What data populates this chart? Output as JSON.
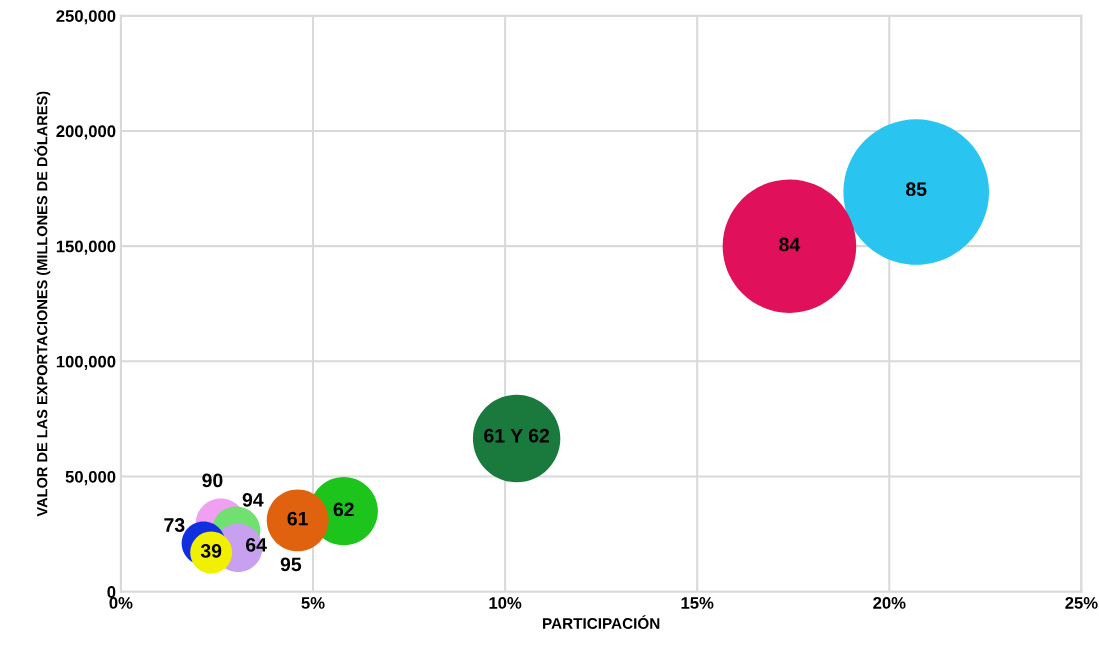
{
  "chart_data": {
    "type": "bubble",
    "xlabel": "PARTICIPACIÓN",
    "ylabel": "VALOR DE LAS EXPORTACIONES (MILLONES DE DÓLARES)",
    "x": [
      20.7,
      17.4,
      10.3,
      5.8,
      4.6,
      2.6,
      3.0,
      3.05,
      2.15,
      2.35
    ],
    "values": [
      173500,
      150000,
      66500,
      35000,
      31000,
      29500,
      26500,
      19000,
      21000,
      17000
    ],
    "sizes": [
      1,
      0.84,
      0.36,
      0.22,
      0.18,
      0.12,
      0.11,
      0.11,
      0.09,
      0.083
    ],
    "colors": [
      "#29c5f0",
      "#e0105a",
      "#1a7a3e",
      "#1cc41c",
      "#e0620e",
      "#f0a0f0",
      "#70e070",
      "#c8a0f0",
      "#1030e0",
      "#f0f000"
    ],
    "xlim": [
      0,
      25
    ],
    "xticks": [
      {
        "value": 0,
        "label": "0%"
      },
      {
        "value": 5,
        "label": "5%"
      },
      {
        "value": 10,
        "label": "10%"
      },
      {
        "value": 15,
        "label": "15%"
      },
      {
        "value": 20,
        "label": "20%"
      },
      {
        "value": 25,
        "label": "25%"
      }
    ],
    "ylim": [
      0,
      250000
    ],
    "yticks": [
      {
        "value": 0,
        "label": "0"
      },
      {
        "value": 50000,
        "label": "50,000"
      },
      {
        "value": 100000,
        "label": "100,000"
      },
      {
        "value": 150000,
        "label": "150,000"
      },
      {
        "value": 200000,
        "label": "200,000"
      },
      {
        "value": 250000,
        "label": "250,000"
      }
    ],
    "grid": true,
    "annotations": [
      {
        "text": "85",
        "x": 20.7,
        "y": 174000
      },
      {
        "text": "84",
        "x": 17.4,
        "y": 150000
      },
      {
        "text": "61 Y 62",
        "x": 10.3,
        "y": 67000
      },
      {
        "text": "62",
        "x": 5.8,
        "y": 35000
      },
      {
        "text": "61",
        "x": 4.6,
        "y": 31000
      },
      {
        "text": "90",
        "x": 2.6,
        "y": 29500
      },
      {
        "text": "94",
        "x": 3.0,
        "y": 26500
      },
      {
        "text": "64",
        "x": 3.05,
        "y": 19000
      },
      {
        "text": "73",
        "x": 2.15,
        "y": 21000
      },
      {
        "text": "39",
        "x": 2.35,
        "y": 17000
      },
      {
        "text": "95",
        "x": 3.05,
        "y": 19000
      }
    ]
  }
}
